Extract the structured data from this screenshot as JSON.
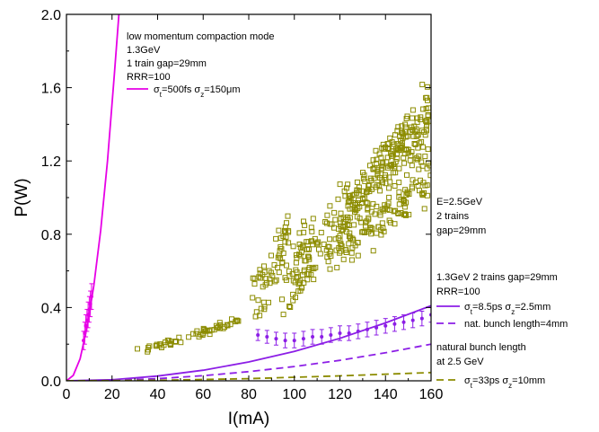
{
  "chart_data": {
    "type": "scatter",
    "xlabel": "I(mA)",
    "ylabel": "P(W)",
    "xlim": [
      0,
      160
    ],
    "ylim": [
      0,
      2.0
    ],
    "xticks": [
      "0",
      "20",
      "40",
      "60",
      "80",
      "100",
      "120",
      "140",
      "160"
    ],
    "yticks": [
      "0.0",
      "0.4",
      "0.8",
      "1.2",
      "1.6",
      "2.0"
    ],
    "grid": false,
    "colors": {
      "magenta": "#e600e6",
      "purple": "#8c1ee6",
      "olive": "#8c8c00"
    },
    "annotations": {
      "top_block": [
        "low momentum compaction mode",
        "1.3GeV",
        "1 train gap=29mm",
        "RRR=100"
      ],
      "top_legend": "σt=500fs σz=150μm",
      "e25_block": [
        "E=2.5GeV",
        "2 trains",
        "gap=29mm"
      ],
      "mid_block": [
        "1.3GeV 2 trains gap=29mm",
        "RRR=100"
      ],
      "mid_legend_solid": "σt=8.5ps σz=2.5mm",
      "mid_legend_dashed": "nat. bunch length=4mm",
      "nat_block": [
        "natural bunch length",
        "at 2.5 GeV"
      ],
      "bottom_legend": "σt=33ps σz=10mm"
    },
    "series": [
      {
        "kind": "line",
        "style": "solid",
        "color": "#e600e6",
        "legend": "σt=500fs σz=150μm",
        "x": [
          0,
          3,
          6,
          9,
          12,
          15,
          18,
          21,
          23
        ],
        "y": [
          0,
          0.03,
          0.12,
          0.29,
          0.52,
          0.82,
          1.2,
          1.67,
          2.0
        ]
      },
      {
        "kind": "errorbar",
        "color": "#e600e6",
        "x": [
          7.5,
          8,
          8.5,
          9,
          9.5,
          10,
          10.5,
          11
        ],
        "y": [
          0.22,
          0.26,
          0.3,
          0.33,
          0.36,
          0.39,
          0.42,
          0.46
        ],
        "err": [
          0.05,
          0.06,
          0.06,
          0.06,
          0.07,
          0.07,
          0.07,
          0.07
        ]
      },
      {
        "kind": "line",
        "style": "solid",
        "color": "#8c1ee6",
        "legend": "σt=8.5ps σz=2.5mm",
        "x": [
          0,
          20,
          40,
          60,
          80,
          100,
          120,
          140,
          160
        ],
        "y": [
          0,
          0.006,
          0.026,
          0.058,
          0.103,
          0.161,
          0.232,
          0.316,
          0.41
        ]
      },
      {
        "kind": "line",
        "style": "dashed",
        "color": "#8c1ee6",
        "legend": "nat. bunch length=4mm",
        "x": [
          0,
          20,
          40,
          60,
          80,
          100,
          120,
          140,
          160
        ],
        "y": [
          0,
          0.003,
          0.012,
          0.028,
          0.05,
          0.078,
          0.112,
          0.153,
          0.2
        ]
      },
      {
        "kind": "line",
        "style": "dashed",
        "color": "#8c8c00",
        "legend": "σt=33ps σz=10mm",
        "x": [
          0,
          40,
          80,
          120,
          160
        ],
        "y": [
          0,
          0.003,
          0.012,
          0.027,
          0.045
        ]
      },
      {
        "kind": "errorbar",
        "color": "#8c1ee6",
        "x": [
          84,
          88,
          92,
          96,
          100,
          104,
          108,
          112,
          116,
          120,
          124,
          128,
          132,
          136,
          140,
          144,
          148,
          152,
          156,
          160
        ],
        "y": [
          0.25,
          0.24,
          0.23,
          0.22,
          0.22,
          0.23,
          0.24,
          0.24,
          0.25,
          0.26,
          0.26,
          0.27,
          0.28,
          0.29,
          0.3,
          0.31,
          0.32,
          0.33,
          0.34,
          0.36
        ],
        "err": [
          0.03,
          0.035,
          0.035,
          0.04,
          0.04,
          0.04,
          0.04,
          0.04,
          0.04,
          0.04,
          0.04,
          0.04,
          0.04,
          0.04,
          0.04,
          0.04,
          0.04,
          0.04,
          0.04,
          0.04
        ]
      },
      {
        "kind": "scatter_band",
        "marker": "open-square",
        "color": "#8c8c00",
        "bands": [
          {
            "x0": 31,
            "x1": 76,
            "y0": 0.15,
            "y1": 0.33,
            "spread": 0.02,
            "n": 60
          },
          {
            "x0": 82,
            "x1": 98,
            "y0": 0.4,
            "y1": 0.8,
            "spread": 0.15,
            "n": 60
          },
          {
            "x0": 95,
            "x1": 160,
            "y0": 0.5,
            "y1": 1.1,
            "spread": 0.12,
            "n": 170
          },
          {
            "x0": 100,
            "x1": 160,
            "y0": 0.65,
            "y1": 1.4,
            "spread": 0.15,
            "n": 170
          },
          {
            "x0": 120,
            "x1": 160,
            "y0": 0.85,
            "y1": 1.55,
            "spread": 0.13,
            "n": 110
          }
        ]
      }
    ]
  }
}
